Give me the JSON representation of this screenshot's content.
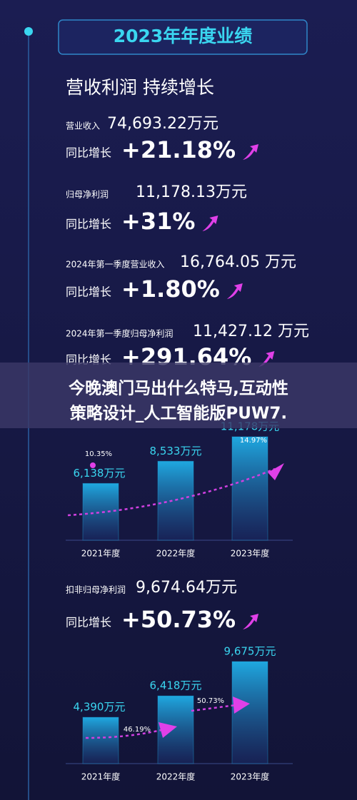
{
  "header": {
    "title": "2023年年度业绩",
    "subtitle": "营收利润 持续增长"
  },
  "stats": [
    {
      "label": "营业收入",
      "value": "74,693.22万元",
      "growth_label": "同比增长",
      "growth": "+21.18%"
    },
    {
      "label": "归母净利润",
      "value": "11,178.13万元",
      "growth_label": "同比增长",
      "growth": "+31%"
    },
    {
      "label": "2024年第一季度营业收入",
      "value": "16,764.05 万元",
      "growth_label": "同比增长",
      "growth": "+1.80%"
    },
    {
      "label": "2024年第一季度归母净利润",
      "value": "11,427.12 万元",
      "growth_label": "同比增长",
      "growth": "+291.64%"
    },
    {
      "label": "扣非归母净利润",
      "value": "9,674.64万元",
      "growth_label": "同比增长",
      "growth": "+50.73%"
    }
  ],
  "overlay": {
    "lines": [
      "今晚澳门马出什么特马,互动性",
      "策略设计_人工智能版PUW7."
    ]
  },
  "chart_data": [
    {
      "type": "bar",
      "categories": [
        "2021年度",
        "2022年度",
        "2023年度"
      ],
      "values": [
        6138,
        8533,
        11178
      ],
      "value_labels": [
        "6,138万元",
        "8,533万元",
        "11,178万元"
      ],
      "annotations": [
        "10.35%",
        "14.97%"
      ],
      "color": "#1e9fd6"
    },
    {
      "type": "bar",
      "categories": [
        "2021年度",
        "2022年度",
        "2023年度"
      ],
      "values": [
        4390,
        6418,
        9675
      ],
      "value_labels": [
        "4,390万元",
        "6,418万元",
        "9,675万元"
      ],
      "annotations": [
        "46.19%",
        "50.73%"
      ],
      "color": "#1e9fd6"
    }
  ]
}
